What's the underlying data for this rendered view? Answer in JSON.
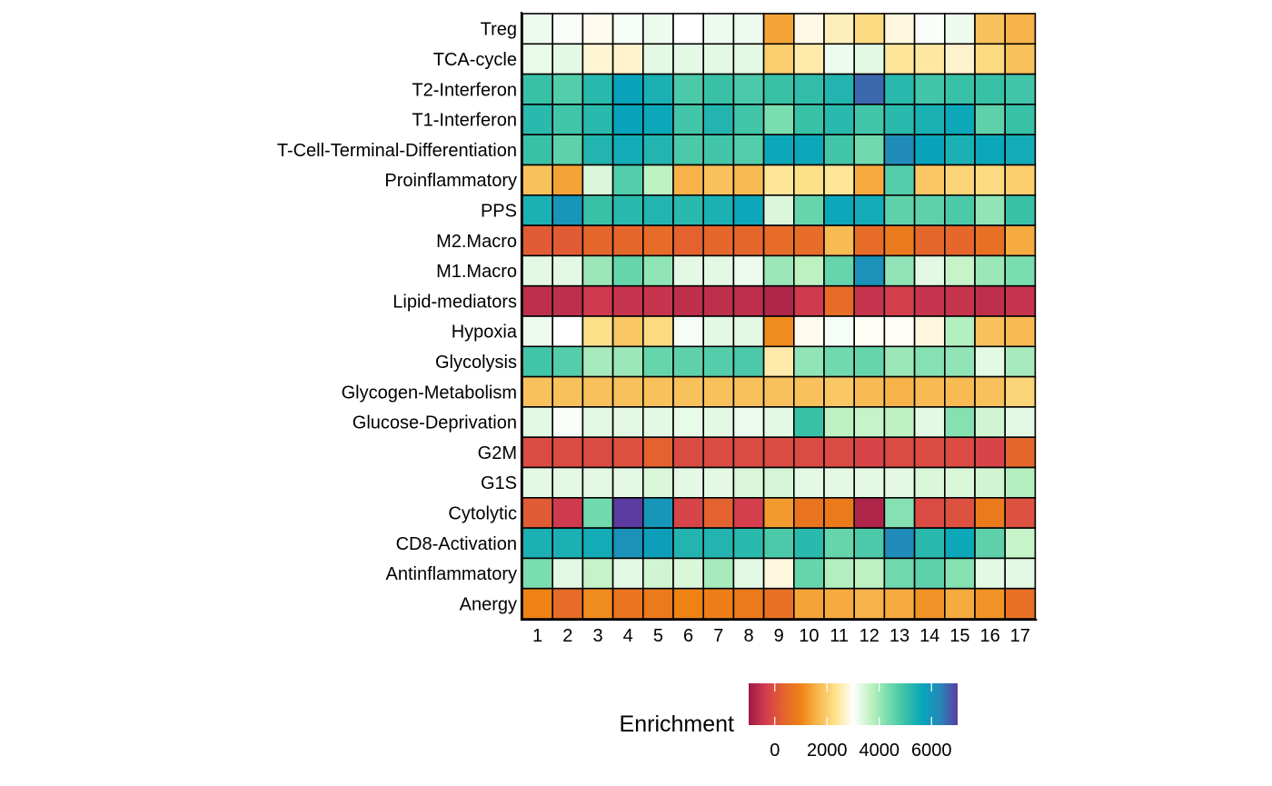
{
  "chart_data": {
    "type": "heatmap",
    "title": "",
    "xlabel": "",
    "ylabel": "",
    "x": [
      "1",
      "2",
      "3",
      "4",
      "5",
      "6",
      "7",
      "8",
      "9",
      "10",
      "11",
      "12",
      "13",
      "14",
      "15",
      "16",
      "17"
    ],
    "y": [
      "Treg",
      "TCA-cycle",
      "T2-Interferon",
      "T1-Interferon",
      "T-Cell-Terminal-Differentiation",
      "Proinflammatory",
      "PPS",
      "M2.Macro",
      "M1.Macro",
      "Lipid-mediators",
      "Hypoxia",
      "Glycolysis",
      "Glycogen-Metabolism",
      "Glucose-Deprivation",
      "G2M",
      "G1S",
      "Cytolytic",
      "CD8-Activation",
      "Antinflammatory",
      "Anergy"
    ],
    "values": [
      [
        3200,
        3050,
        2900,
        3100,
        3200,
        3000,
        3200,
        3200,
        1400,
        2850,
        2600,
        2200,
        2800,
        3050,
        3200,
        1800,
        1600
      ],
      [
        3250,
        3300,
        2750,
        2700,
        3300,
        3300,
        3300,
        3300,
        2000,
        2500,
        3200,
        3300,
        2400,
        2450,
        2700,
        2200,
        1800
      ],
      [
        5000,
        4700,
        5200,
        5700,
        5400,
        4800,
        5000,
        4800,
        5000,
        5100,
        5300,
        6600,
        5200,
        4900,
        5000,
        5000,
        4900
      ],
      [
        5200,
        4900,
        5200,
        5700,
        5600,
        4900,
        5300,
        4900,
        4300,
        5000,
        5200,
        4900,
        5200,
        5400,
        5600,
        4600,
        5000
      ],
      [
        5000,
        4600,
        5300,
        5500,
        5300,
        4800,
        4900,
        4700,
        5600,
        5600,
        4900,
        4400,
        6200,
        5700,
        5400,
        5600,
        5500
      ],
      [
        1800,
        1400,
        3400,
        4700,
        3700,
        1600,
        1800,
        1700,
        2400,
        2300,
        2400,
        1500,
        4700,
        1900,
        2100,
        2200,
        2000
      ],
      [
        5400,
        6000,
        5000,
        5200,
        5300,
        5200,
        5400,
        5600,
        3400,
        4500,
        5600,
        5500,
        4600,
        4600,
        4800,
        4100,
        5000
      ],
      [
        200,
        200,
        400,
        400,
        500,
        300,
        400,
        400,
        500,
        500,
        1700,
        500,
        800,
        400,
        400,
        600,
        1500
      ],
      [
        3300,
        3300,
        4000,
        4500,
        4100,
        3300,
        3300,
        3200,
        4000,
        3700,
        4500,
        6100,
        4100,
        3300,
        3600,
        4000,
        4300
      ],
      [
        -600,
        -600,
        -400,
        -500,
        -500,
        -600,
        -600,
        -600,
        -800,
        -400,
        500,
        -500,
        -300,
        -500,
        -500,
        -600,
        -500
      ],
      [
        3200,
        3000,
        2300,
        1900,
        2200,
        3100,
        3300,
        3300,
        1100,
        2900,
        3100,
        2950,
        2950,
        2800,
        3800,
        1800,
        1700
      ],
      [
        4900,
        4700,
        3900,
        4000,
        4500,
        4600,
        4700,
        4800,
        2500,
        4100,
        4400,
        4500,
        4000,
        4200,
        4100,
        3300,
        3900
      ],
      [
        1800,
        1800,
        1800,
        1800,
        1800,
        1800,
        1800,
        1800,
        1800,
        1800,
        1900,
        1700,
        1600,
        1700,
        1700,
        1800,
        2100
      ],
      [
        3300,
        3050,
        3300,
        3300,
        3300,
        3250,
        3300,
        3200,
        3300,
        5000,
        3700,
        3600,
        3700,
        3300,
        4200,
        3500,
        3300
      ],
      [
        -100,
        -100,
        -100,
        0,
        300,
        -100,
        -100,
        -100,
        -100,
        -100,
        -100,
        -200,
        -100,
        -100,
        -100,
        -200,
        400
      ],
      [
        3300,
        3300,
        3300,
        3300,
        3400,
        3300,
        3300,
        3400,
        3450,
        3300,
        3300,
        3300,
        3300,
        3400,
        3400,
        3500,
        3800
      ],
      [
        200,
        -400,
        4400,
        7000,
        6000,
        -200,
        300,
        -300,
        1300,
        700,
        800,
        -800,
        4200,
        -100,
        0,
        800,
        0
      ],
      [
        5400,
        5400,
        5500,
        6100,
        5800,
        5300,
        5300,
        5200,
        4800,
        5200,
        4500,
        4800,
        6200,
        5200,
        5600,
        4600,
        3600
      ],
      [
        4300,
        3300,
        3600,
        3300,
        3500,
        3400,
        3900,
        3300,
        2800,
        4500,
        3800,
        3700,
        4400,
        4600,
        4200,
        3300,
        3300
      ],
      [
        1000,
        500,
        1100,
        700,
        800,
        1000,
        900,
        800,
        600,
        1400,
        1500,
        1600,
        1500,
        1200,
        1500,
        1200,
        600
      ]
    ],
    "legend": {
      "title": "Enrichment",
      "ticks": [
        0,
        2000,
        4000,
        6000
      ],
      "tick_labels": [
        "0",
        "2000",
        "4000",
        "6000"
      ],
      "range": [
        -1000,
        7000
      ],
      "colors": [
        "#9e1a47",
        "#d43d4f",
        "#e4642e",
        "#ee8314",
        "#f8b84f",
        "#fde38d",
        "#ffffff",
        "#c1f2c2",
        "#76dcae",
        "#39c1a7",
        "#07a5bb",
        "#2786b8",
        "#5c3ca0"
      ],
      "position": "bottom"
    }
  }
}
